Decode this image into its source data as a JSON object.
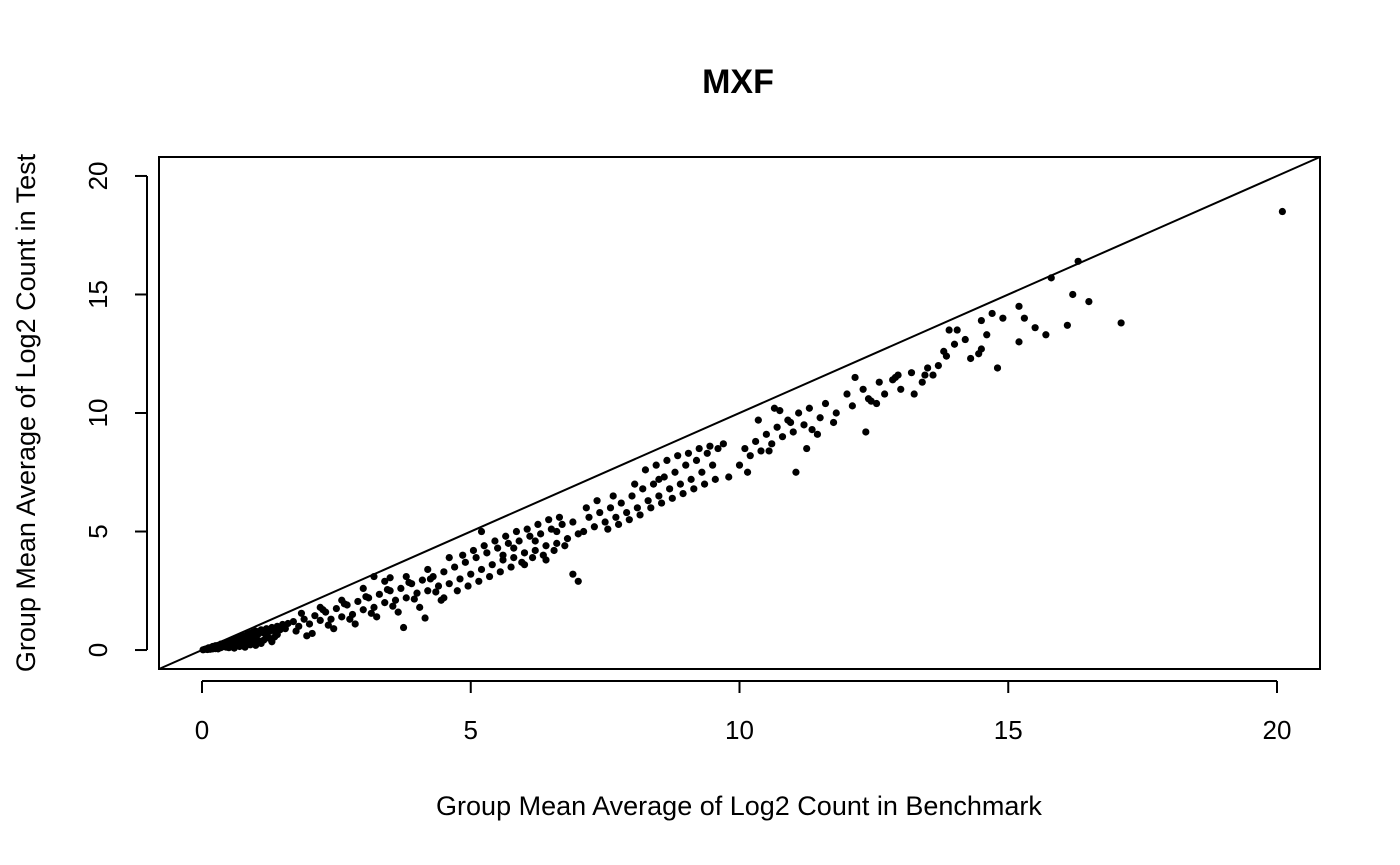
{
  "chart_data": {
    "type": "scatter",
    "title": "MXF",
    "xlabel": "Group Mean Average of Log2 Count in Benchmark",
    "ylabel": "Group Mean Average of Log2 Count in Test",
    "xlim": [
      -0.8,
      20.8
    ],
    "ylim": [
      -0.8,
      20.8
    ],
    "xticks": [
      "0",
      "5",
      "10",
      "15",
      "20"
    ],
    "yticks": [
      "0",
      "5",
      "10",
      "15",
      "20"
    ],
    "grid": false,
    "reference_line": {
      "intercept": 0,
      "slope": 1
    },
    "series": [
      {
        "points": [
          [
            0.02,
            0.01
          ],
          [
            0.05,
            0.03
          ],
          [
            0.08,
            0.05
          ],
          [
            0.1,
            0.02
          ],
          [
            0.12,
            0.09
          ],
          [
            0.15,
            0.1
          ],
          [
            0.18,
            0.08
          ],
          [
            0.2,
            0.15
          ],
          [
            0.22,
            0.12
          ],
          [
            0.25,
            0.18
          ],
          [
            0.28,
            0.14
          ],
          [
            0.3,
            0.2
          ],
          [
            0.33,
            0.17
          ],
          [
            0.35,
            0.25
          ],
          [
            0.38,
            0.22
          ],
          [
            0.4,
            0.28
          ],
          [
            0.42,
            0.2
          ],
          [
            0.45,
            0.32
          ],
          [
            0.48,
            0.26
          ],
          [
            0.5,
            0.35
          ],
          [
            0.53,
            0.3
          ],
          [
            0.55,
            0.4
          ],
          [
            0.58,
            0.33
          ],
          [
            0.6,
            0.45
          ],
          [
            0.62,
            0.36
          ],
          [
            0.65,
            0.48
          ],
          [
            0.68,
            0.4
          ],
          [
            0.7,
            0.55
          ],
          [
            0.72,
            0.43
          ],
          [
            0.75,
            0.58
          ],
          [
            0.78,
            0.47
          ],
          [
            0.8,
            0.6
          ],
          [
            0.83,
            0.5
          ],
          [
            0.85,
            0.66
          ],
          [
            0.88,
            0.55
          ],
          [
            0.9,
            0.7
          ],
          [
            0.93,
            0.58
          ],
          [
            0.95,
            0.75
          ],
          [
            0.98,
            0.62
          ],
          [
            1.0,
            0.8
          ],
          [
            1.05,
            0.68
          ],
          [
            1.1,
            0.85
          ],
          [
            1.15,
            0.72
          ],
          [
            1.2,
            0.9
          ],
          [
            1.25,
            0.78
          ],
          [
            1.3,
            0.95
          ],
          [
            1.35,
            0.8
          ],
          [
            1.4,
            1.0
          ],
          [
            1.45,
            0.85
          ],
          [
            1.5,
            1.08
          ],
          [
            1.55,
            0.9
          ],
          [
            1.6,
            1.12
          ],
          [
            0.15,
            0.03
          ],
          [
            0.25,
            0.06
          ],
          [
            0.35,
            0.1
          ],
          [
            0.45,
            0.12
          ],
          [
            0.55,
            0.18
          ],
          [
            0.65,
            0.2
          ],
          [
            0.75,
            0.25
          ],
          [
            0.85,
            0.3
          ],
          [
            0.95,
            0.35
          ],
          [
            1.05,
            0.4
          ],
          [
            1.15,
            0.42
          ],
          [
            1.25,
            0.5
          ],
          [
            1.35,
            0.55
          ],
          [
            0.3,
            0.05
          ],
          [
            0.5,
            0.1
          ],
          [
            0.7,
            0.15
          ],
          [
            0.9,
            0.22
          ],
          [
            1.1,
            0.28
          ],
          [
            1.3,
            0.35
          ],
          [
            0.4,
            0.15
          ],
          [
            0.6,
            0.25
          ],
          [
            0.8,
            0.35
          ],
          [
            1.0,
            0.45
          ],
          [
            1.2,
            0.55
          ],
          [
            1.4,
            0.65
          ],
          [
            0.2,
            0.05
          ],
          [
            0.6,
            0.08
          ],
          [
            0.8,
            0.12
          ],
          [
            1.0,
            0.2
          ],
          [
            1.7,
            1.2
          ],
          [
            1.8,
            1.0
          ],
          [
            1.9,
            1.3
          ],
          [
            2.0,
            1.1
          ],
          [
            2.1,
            1.45
          ],
          [
            2.2,
            1.25
          ],
          [
            2.3,
            1.6
          ],
          [
            2.4,
            1.3
          ],
          [
            2.5,
            1.75
          ],
          [
            2.6,
            1.4
          ],
          [
            2.7,
            1.9
          ],
          [
            2.8,
            1.5
          ],
          [
            2.9,
            2.05
          ],
          [
            3.0,
            1.7
          ],
          [
            3.1,
            2.2
          ],
          [
            3.2,
            1.8
          ],
          [
            3.3,
            2.35
          ],
          [
            3.4,
            2.0
          ],
          [
            3.5,
            2.5
          ],
          [
            3.6,
            2.1
          ],
          [
            3.7,
            2.6
          ],
          [
            3.8,
            2.2
          ],
          [
            3.9,
            2.8
          ],
          [
            4.0,
            2.4
          ],
          [
            4.1,
            2.95
          ],
          [
            4.2,
            2.5
          ],
          [
            4.3,
            3.1
          ],
          [
            4.4,
            2.7
          ],
          [
            4.5,
            3.3
          ],
          [
            4.6,
            2.8
          ],
          [
            1.75,
            0.8
          ],
          [
            1.85,
            1.55
          ],
          [
            2.05,
            0.7
          ],
          [
            2.25,
            1.7
          ],
          [
            2.45,
            0.9
          ],
          [
            2.65,
            1.95
          ],
          [
            2.85,
            1.1
          ],
          [
            3.05,
            2.25
          ],
          [
            3.25,
            1.4
          ],
          [
            3.45,
            2.55
          ],
          [
            3.65,
            1.6
          ],
          [
            3.85,
            2.85
          ],
          [
            4.05,
            1.8
          ],
          [
            4.25,
            3.0
          ],
          [
            4.45,
            2.1
          ],
          [
            1.95,
            0.6
          ],
          [
            2.35,
            1.05
          ],
          [
            2.75,
            1.3
          ],
          [
            3.15,
            1.55
          ],
          [
            3.55,
            1.85
          ],
          [
            3.95,
            2.15
          ],
          [
            4.35,
            2.45
          ],
          [
            3.2,
            3.1
          ],
          [
            3.5,
            3.05
          ],
          [
            3.75,
            0.95
          ],
          [
            4.15,
            1.35
          ],
          [
            2.2,
            1.8
          ],
          [
            2.6,
            2.1
          ],
          [
            3.0,
            2.6
          ],
          [
            3.4,
            2.9
          ],
          [
            3.8,
            3.1
          ],
          [
            4.2,
            3.4
          ],
          [
            4.7,
            3.5
          ],
          [
            4.8,
            3.0
          ],
          [
            4.9,
            3.7
          ],
          [
            5.0,
            3.2
          ],
          [
            5.1,
            3.9
          ],
          [
            5.2,
            3.4
          ],
          [
            5.3,
            4.1
          ],
          [
            5.4,
            3.6
          ],
          [
            5.5,
            4.3
          ],
          [
            5.6,
            3.8
          ],
          [
            5.7,
            4.5
          ],
          [
            5.8,
            3.9
          ],
          [
            5.9,
            4.6
          ],
          [
            6.0,
            4.1
          ],
          [
            6.1,
            4.8
          ],
          [
            6.2,
            4.2
          ],
          [
            6.3,
            4.9
          ],
          [
            6.4,
            4.4
          ],
          [
            6.5,
            5.1
          ],
          [
            6.6,
            4.5
          ],
          [
            6.7,
            5.3
          ],
          [
            6.8,
            4.7
          ],
          [
            6.9,
            5.4
          ],
          [
            7.0,
            4.9
          ],
          [
            4.75,
            2.5
          ],
          [
            4.95,
            2.7
          ],
          [
            5.15,
            2.9
          ],
          [
            5.35,
            3.1
          ],
          [
            5.55,
            3.3
          ],
          [
            5.75,
            3.5
          ],
          [
            5.95,
            3.7
          ],
          [
            6.15,
            3.9
          ],
          [
            6.35,
            4.0
          ],
          [
            6.55,
            4.2
          ],
          [
            6.75,
            4.4
          ],
          [
            5.05,
            4.2
          ],
          [
            5.25,
            4.4
          ],
          [
            5.45,
            4.6
          ],
          [
            5.65,
            4.8
          ],
          [
            5.85,
            5.0
          ],
          [
            6.05,
            5.1
          ],
          [
            6.25,
            5.3
          ],
          [
            6.45,
            5.5
          ],
          [
            6.65,
            5.6
          ],
          [
            4.85,
            4.0
          ],
          [
            5.2,
            5.0
          ],
          [
            5.6,
            4.0
          ],
          [
            6.0,
            3.6
          ],
          [
            6.4,
            3.8
          ],
          [
            6.9,
            3.2
          ],
          [
            7.0,
            2.9
          ],
          [
            4.6,
            3.9
          ],
          [
            4.5,
            2.2
          ],
          [
            5.8,
            4.3
          ],
          [
            6.2,
            4.6
          ],
          [
            6.6,
            5.0
          ],
          [
            7.1,
            5.0
          ],
          [
            7.2,
            5.6
          ],
          [
            7.3,
            5.2
          ],
          [
            7.4,
            5.8
          ],
          [
            7.5,
            5.4
          ],
          [
            7.6,
            6.0
          ],
          [
            7.7,
            5.6
          ],
          [
            7.8,
            6.2
          ],
          [
            7.9,
            5.8
          ],
          [
            8.0,
            6.5
          ],
          [
            8.1,
            6.0
          ],
          [
            8.2,
            6.8
          ],
          [
            8.3,
            6.3
          ],
          [
            8.4,
            7.0
          ],
          [
            8.5,
            6.5
          ],
          [
            8.6,
            7.3
          ],
          [
            8.7,
            6.8
          ],
          [
            8.8,
            7.5
          ],
          [
            8.9,
            7.0
          ],
          [
            9.0,
            7.8
          ],
          [
            9.1,
            7.2
          ],
          [
            9.2,
            8.0
          ],
          [
            9.3,
            7.5
          ],
          [
            9.4,
            8.3
          ],
          [
            9.5,
            7.8
          ],
          [
            9.6,
            8.5
          ],
          [
            7.15,
            6.0
          ],
          [
            7.35,
            6.3
          ],
          [
            7.55,
            5.1
          ],
          [
            7.75,
            5.3
          ],
          [
            7.95,
            5.5
          ],
          [
            8.15,
            5.7
          ],
          [
            8.35,
            6.0
          ],
          [
            8.55,
            6.2
          ],
          [
            8.75,
            6.4
          ],
          [
            8.95,
            6.6
          ],
          [
            9.15,
            6.8
          ],
          [
            9.35,
            7.0
          ],
          [
            9.55,
            7.2
          ],
          [
            8.25,
            7.6
          ],
          [
            8.45,
            7.8
          ],
          [
            8.65,
            8.0
          ],
          [
            8.85,
            8.2
          ],
          [
            9.05,
            8.3
          ],
          [
            9.45,
            8.6
          ],
          [
            9.7,
            8.7
          ],
          [
            7.65,
            6.5
          ],
          [
            8.05,
            7.0
          ],
          [
            8.5,
            7.2
          ],
          [
            9.25,
            8.5
          ],
          [
            9.8,
            7.3
          ],
          [
            10.0,
            7.8
          ],
          [
            10.1,
            8.5
          ],
          [
            10.2,
            8.2
          ],
          [
            10.3,
            8.8
          ],
          [
            10.4,
            8.4
          ],
          [
            10.5,
            9.1
          ],
          [
            10.6,
            8.7
          ],
          [
            10.7,
            9.4
          ],
          [
            10.8,
            9.0
          ],
          [
            10.9,
            9.7
          ],
          [
            11.0,
            9.2
          ],
          [
            11.1,
            10.0
          ],
          [
            11.2,
            9.5
          ],
          [
            11.3,
            10.2
          ],
          [
            11.5,
            9.8
          ],
          [
            11.6,
            10.4
          ],
          [
            11.8,
            10.0
          ],
          [
            12.0,
            10.8
          ],
          [
            12.1,
            10.3
          ],
          [
            12.3,
            11.0
          ],
          [
            12.4,
            10.6
          ],
          [
            12.6,
            11.3
          ],
          [
            12.7,
            10.8
          ],
          [
            12.9,
            11.5
          ],
          [
            13.0,
            11.0
          ],
          [
            13.2,
            11.7
          ],
          [
            13.4,
            11.3
          ],
          [
            13.5,
            11.9
          ],
          [
            10.15,
            7.5
          ],
          [
            10.55,
            8.4
          ],
          [
            10.75,
            10.1
          ],
          [
            11.05,
            7.5
          ],
          [
            11.45,
            9.1
          ],
          [
            11.75,
            9.6
          ],
          [
            12.35,
            9.2
          ],
          [
            12.55,
            10.4
          ],
          [
            12.85,
            11.4
          ],
          [
            13.25,
            10.8
          ],
          [
            13.45,
            11.6
          ],
          [
            10.35,
            9.7
          ],
          [
            10.65,
            10.2
          ],
          [
            11.25,
            8.5
          ],
          [
            12.15,
            11.5
          ],
          [
            12.95,
            11.6
          ],
          [
            13.6,
            11.6
          ],
          [
            10.95,
            9.6
          ],
          [
            11.35,
            9.3
          ],
          [
            12.45,
            10.5
          ],
          [
            13.7,
            12.0
          ],
          [
            13.8,
            12.6
          ],
          [
            13.9,
            13.5
          ],
          [
            14.0,
            12.9
          ],
          [
            14.2,
            13.1
          ],
          [
            14.3,
            12.3
          ],
          [
            14.5,
            12.7
          ],
          [
            14.5,
            13.9
          ],
          [
            14.6,
            13.3
          ],
          [
            14.7,
            14.2
          ],
          [
            14.8,
            11.9
          ],
          [
            14.9,
            14.0
          ],
          [
            15.2,
            14.5
          ],
          [
            15.2,
            13.0
          ],
          [
            15.3,
            14.0
          ],
          [
            15.5,
            13.6
          ],
          [
            15.7,
            13.3
          ],
          [
            15.8,
            15.7
          ],
          [
            16.1,
            13.7
          ],
          [
            16.2,
            15.0
          ],
          [
            16.3,
            16.4
          ],
          [
            16.5,
            14.7
          ],
          [
            17.1,
            13.8
          ],
          [
            20.1,
            18.5
          ],
          [
            13.85,
            12.4
          ],
          [
            14.45,
            12.5
          ],
          [
            14.05,
            13.5
          ]
        ]
      }
    ]
  }
}
